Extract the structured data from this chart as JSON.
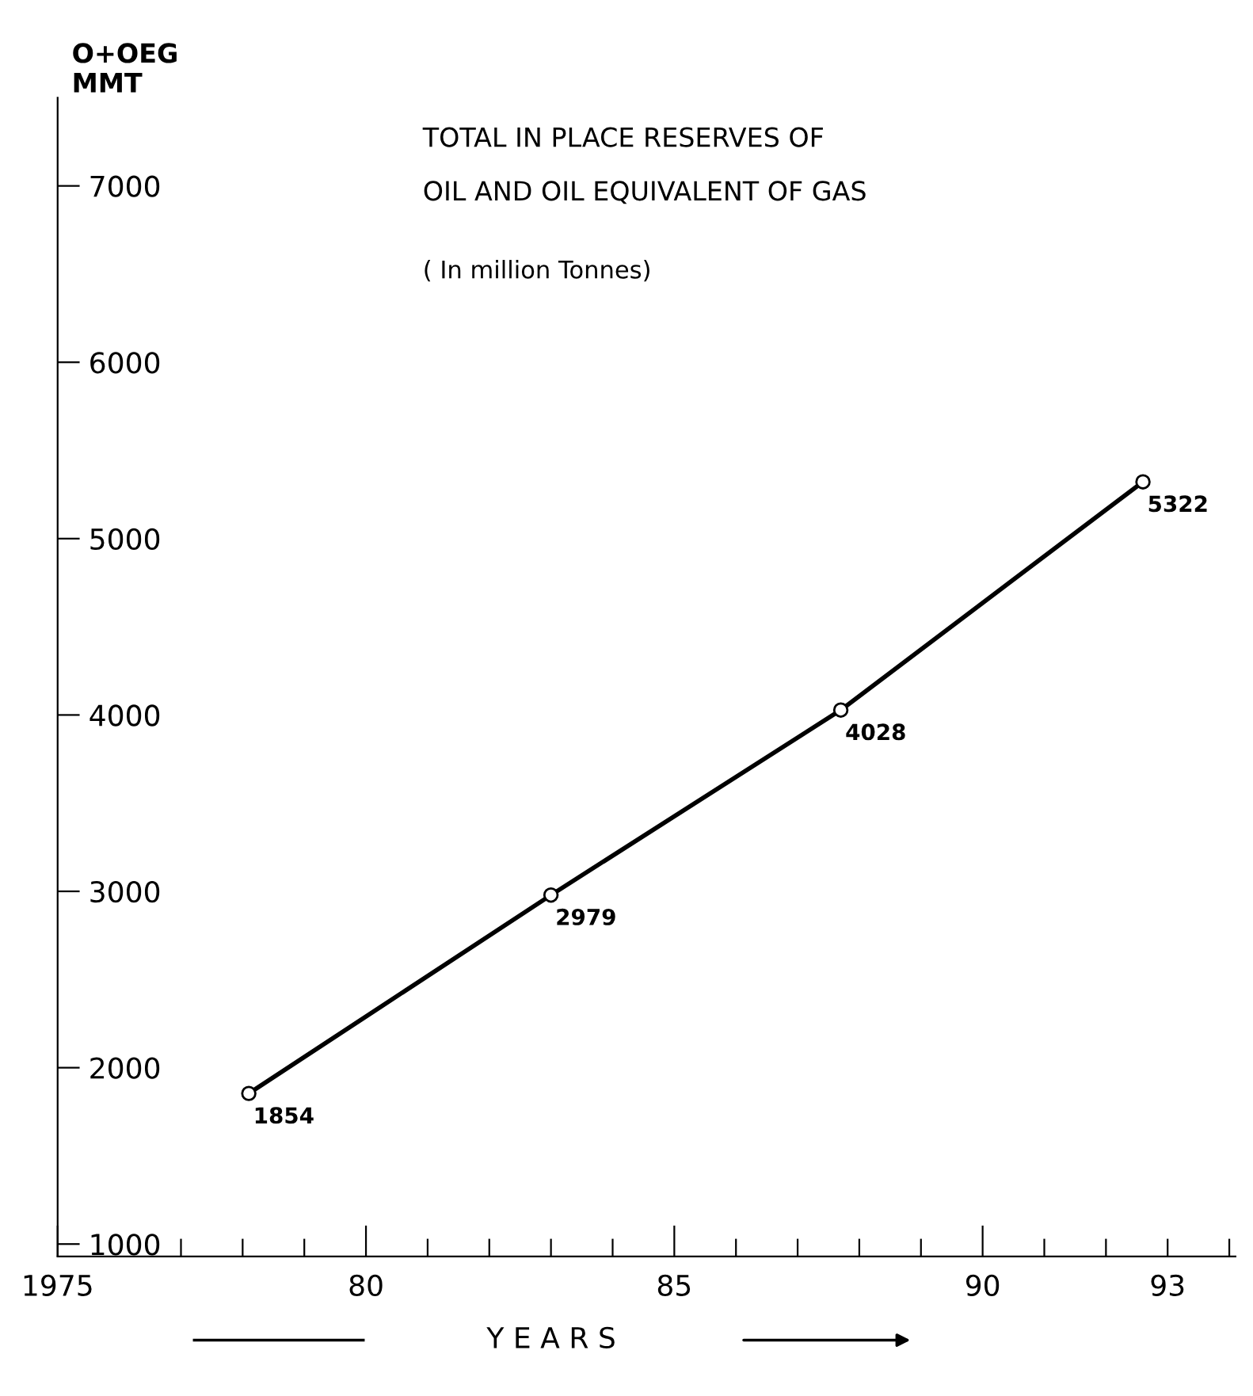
{
  "chart_data": {
    "type": "line",
    "title": "TOTAL IN PLACE RESERVES OF\nOIL AND OIL EQUIVALENT OF GAS",
    "subtitle": "( In million Tonnes)",
    "xlabel": "Y E A R S",
    "ylabel": "O+OEG\nMMT",
    "x": [
      1978.1,
      1983,
      1987.7,
      1992.6
    ],
    "series": [
      {
        "color": "#000000",
        "values": [
          1854,
          2979,
          4028,
          5322
        ]
      }
    ],
    "data_labels": true,
    "marker": "circle",
    "line_style": "solid",
    "grid": false,
    "legend": false,
    "xlim": [
      1975,
      1994.1
    ],
    "ylim": [
      930,
      7500
    ],
    "xticks": [
      1975,
      {
        "value": 1977,
        "label": null
      },
      {
        "value": 1978,
        "label": null
      },
      {
        "value": 1979,
        "label": null
      },
      {
        "value": 1980,
        "label": "80"
      },
      {
        "value": 1981,
        "label": null
      },
      {
        "value": 1982,
        "label": null
      },
      {
        "value": 1983,
        "label": null
      },
      {
        "value": 1984,
        "label": null
      },
      {
        "value": 1985,
        "label": "85"
      },
      {
        "value": 1986,
        "label": null
      },
      {
        "value": 1987,
        "label": null
      },
      {
        "value": 1988,
        "label": null
      },
      {
        "value": 1989,
        "label": null
      },
      {
        "value": 1990,
        "label": "90"
      },
      {
        "value": 1991,
        "label": null
      },
      {
        "value": 1992,
        "label": null
      },
      {
        "value": 1993,
        "label": "93"
      },
      {
        "value": 1994,
        "label": null
      }
    ],
    "yticks": [
      1000,
      2000,
      3000,
      4000,
      5000,
      6000,
      7000
    ]
  }
}
